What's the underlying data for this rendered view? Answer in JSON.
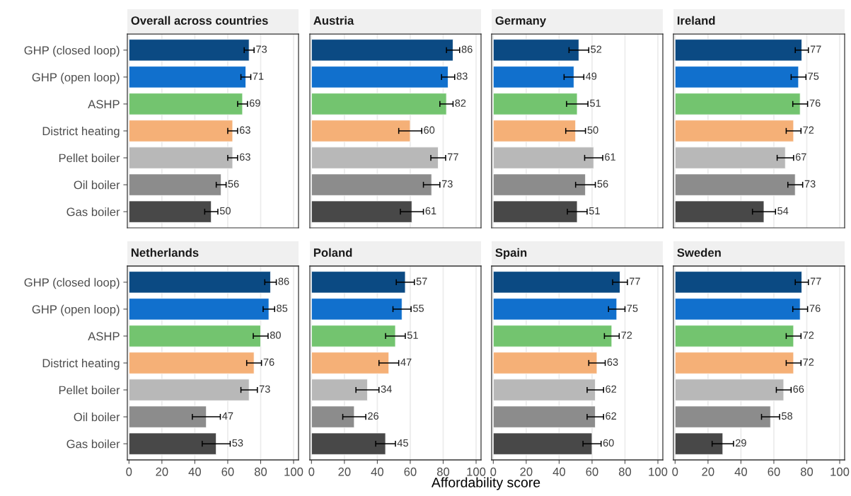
{
  "chart_data": [
    {
      "type": "bar",
      "orientation": "horizontal",
      "title": "Overall across countries",
      "categories": [
        "GHP (closed loop)",
        "GHP (open loop)",
        "ASHP",
        "District heating",
        "Pellet boiler",
        "Oil boiler",
        "Gas boiler"
      ],
      "colors": [
        "#0b4a83",
        "#1170cd",
        "#73c46f",
        "#f5b077",
        "#b8b8b8",
        "#8c8c8c",
        "#484848"
      ],
      "values": [
        73,
        71,
        69,
        63,
        63,
        56,
        50
      ],
      "errors": [
        3,
        3,
        3,
        3,
        3,
        3,
        4
      ],
      "xlim": [
        -1,
        103
      ],
      "xticks": [
        0,
        20,
        40,
        60,
        80,
        100
      ],
      "grid": "x",
      "data_labels": true,
      "tick_labels": "y"
    },
    {
      "type": "bar",
      "orientation": "horizontal",
      "title": "Austria",
      "categories": [
        null,
        null,
        null,
        null,
        null,
        null,
        null
      ],
      "colors": [
        "#0b4a83",
        "#1170cd",
        "#73c46f",
        "#f5b077",
        "#b8b8b8",
        "#8c8c8c",
        "#484848"
      ],
      "values": [
        86,
        83,
        82,
        60,
        77,
        73,
        61
      ],
      "errors": [
        4,
        4,
        4,
        7,
        4.5,
        5,
        7
      ],
      "xlim": [
        -1,
        103
      ],
      "xticks": [
        0,
        20,
        40,
        60,
        80,
        100
      ],
      "grid": "x",
      "data_labels": true,
      "tick_labels": false
    },
    {
      "type": "bar",
      "orientation": "horizontal",
      "title": "Germany",
      "categories": [
        null,
        null,
        null,
        null,
        null,
        null,
        null
      ],
      "colors": [
        "#0b4a83",
        "#1170cd",
        "#73c46f",
        "#f5b077",
        "#b8b8b8",
        "#8c8c8c",
        "#484848"
      ],
      "values": [
        52,
        49,
        51,
        50,
        61,
        56,
        51
      ],
      "errors": [
        6,
        6,
        6.5,
        6,
        5.5,
        6,
        6
      ],
      "xlim": [
        -1,
        103
      ],
      "xticks": [
        0,
        20,
        40,
        60,
        80,
        100
      ],
      "grid": "x",
      "data_labels": true,
      "tick_labels": false
    },
    {
      "type": "bar",
      "orientation": "horizontal",
      "title": "Ireland",
      "categories": [
        null,
        null,
        null,
        null,
        null,
        null,
        null
      ],
      "colors": [
        "#0b4a83",
        "#1170cd",
        "#73c46f",
        "#f5b077",
        "#b8b8b8",
        "#8c8c8c",
        "#484848"
      ],
      "values": [
        77,
        75,
        76,
        72,
        67,
        73,
        54
      ],
      "errors": [
        4,
        4.5,
        4.5,
        4.5,
        5,
        4.5,
        7
      ],
      "xlim": [
        -1,
        103
      ],
      "xticks": [
        0,
        20,
        40,
        60,
        80,
        100
      ],
      "grid": "x",
      "data_labels": true,
      "tick_labels": false
    },
    {
      "type": "bar",
      "orientation": "horizontal",
      "title": "Netherlands",
      "categories": [
        "GHP (closed loop)",
        "GHP (open loop)",
        "ASHP",
        "District heating",
        "Pellet boiler",
        "Oil boiler",
        "Gas boiler"
      ],
      "colors": [
        "#0b4a83",
        "#1170cd",
        "#73c46f",
        "#f5b077",
        "#b8b8b8",
        "#8c8c8c",
        "#484848"
      ],
      "values": [
        86,
        85,
        80,
        76,
        73,
        47,
        53
      ],
      "errors": [
        3.5,
        3.5,
        4.5,
        4.5,
        5,
        8.5,
        8.5
      ],
      "xlim": [
        -1,
        103
      ],
      "xticks": [
        0,
        20,
        40,
        60,
        80,
        100
      ],
      "grid": "x",
      "data_labels": true
    },
    {
      "type": "bar",
      "orientation": "horizontal",
      "title": "Poland",
      "xlabel": "Affordability score",
      "categories": [
        null,
        null,
        null,
        null,
        null,
        null,
        null
      ],
      "colors": [
        "#0b4a83",
        "#1170cd",
        "#73c46f",
        "#f5b077",
        "#b8b8b8",
        "#8c8c8c",
        "#484848"
      ],
      "values": [
        57,
        55,
        51,
        47,
        34,
        26,
        45
      ],
      "errors": [
        5.5,
        5.5,
        6,
        6,
        7,
        7,
        6
      ],
      "xlim": [
        -1,
        103
      ],
      "xticks": [
        0,
        20,
        40,
        60,
        80,
        100
      ],
      "grid": "x",
      "data_labels": true,
      "tick_labels": "x"
    },
    {
      "type": "bar",
      "orientation": "horizontal",
      "title": "Spain",
      "categories": [
        null,
        null,
        null,
        null,
        null,
        null,
        null
      ],
      "colors": [
        "#0b4a83",
        "#1170cd",
        "#73c46f",
        "#f5b077",
        "#b8b8b8",
        "#8c8c8c",
        "#484848"
      ],
      "values": [
        77,
        75,
        72,
        63,
        62,
        62,
        60
      ],
      "errors": [
        4.5,
        5,
        4.5,
        5,
        5,
        5,
        5.5
      ],
      "xlim": [
        -1,
        103
      ],
      "xticks": [
        0,
        20,
        40,
        60,
        80,
        100
      ],
      "grid": "x",
      "data_labels": true,
      "tick_labels": "x"
    },
    {
      "type": "bar",
      "orientation": "horizontal",
      "title": "Sweden",
      "categories": [
        null,
        null,
        null,
        null,
        null,
        null,
        null
      ],
      "colors": [
        "#0b4a83",
        "#1170cd",
        "#73c46f",
        "#f5b077",
        "#b8b8b8",
        "#8c8c8c",
        "#484848"
      ],
      "values": [
        77,
        76,
        72,
        72,
        66,
        58,
        29
      ],
      "errors": [
        4,
        4.5,
        4.5,
        4.5,
        4.5,
        5.5,
        6.5
      ],
      "xlim": [
        -1,
        103
      ],
      "xticks": [
        0,
        20,
        40,
        60,
        80,
        100
      ],
      "grid": "x",
      "data_labels": true,
      "tick_labels": "x"
    }
  ]
}
